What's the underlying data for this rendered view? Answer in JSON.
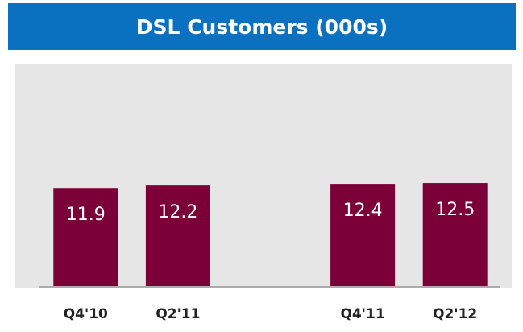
{
  "chart_data": {
    "type": "bar",
    "title": "DSL Customers (000s)",
    "categories": [
      "Q4'10",
      "Q2'11",
      null,
      "Q4'11",
      "Q2'12"
    ],
    "values": [
      11.9,
      12.2,
      null,
      12.4,
      12.5
    ],
    "color": "#7b0037",
    "ylim": [
      0,
      30
    ]
  }
}
